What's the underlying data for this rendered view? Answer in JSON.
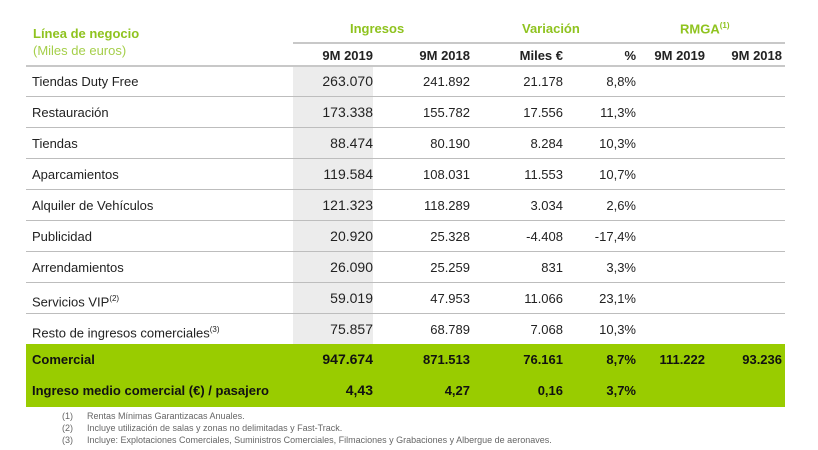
{
  "header": {
    "line_title": "Línea de negocio",
    "line_subtitle": "(Miles de euros)",
    "group_ingresos": "Ingresos",
    "group_variacion": "Variación",
    "group_rmga": "RMGA",
    "group_rmga_note": "(1)",
    "cols": [
      "9M 2019",
      "9M 2018",
      "Miles €",
      "%",
      "9M 2019",
      "9M 2018"
    ]
  },
  "rows": [
    {
      "label": "Tiendas Duty Free",
      "note": "",
      "v": [
        "263.070",
        "241.892",
        "21.178",
        "8,8%",
        "",
        ""
      ]
    },
    {
      "label": "Restauración",
      "note": "",
      "v": [
        "173.338",
        "155.782",
        "17.556",
        "11,3%",
        "",
        ""
      ]
    },
    {
      "label": "Tiendas",
      "note": "",
      "v": [
        "88.474",
        "80.190",
        "8.284",
        "10,3%",
        "",
        ""
      ]
    },
    {
      "label": "Aparcamientos",
      "note": "",
      "v": [
        "119.584",
        "108.031",
        "11.553",
        "10,7%",
        "",
        ""
      ]
    },
    {
      "label": "Alquiler de Vehículos",
      "note": "",
      "v": [
        "121.323",
        "118.289",
        "3.034",
        "2,6%",
        "",
        ""
      ]
    },
    {
      "label": "Publicidad",
      "note": "",
      "v": [
        "20.920",
        "25.328",
        "-4.408",
        "-17,4%",
        "",
        ""
      ]
    },
    {
      "label": "Arrendamientos",
      "note": "",
      "v": [
        "26.090",
        "25.259",
        "831",
        "3,3%",
        "",
        ""
      ]
    },
    {
      "label": "Servicios VIP",
      "note": "(2)",
      "v": [
        "59.019",
        "47.953",
        "11.066",
        "23,1%",
        "",
        ""
      ]
    },
    {
      "label": "Resto de ingresos comerciales",
      "note": "(3)",
      "v": [
        "75.857",
        "68.789",
        "7.068",
        "10,3%",
        "",
        ""
      ]
    }
  ],
  "totals": [
    {
      "label": "Comercial",
      "v": [
        "947.674",
        "871.513",
        "76.161",
        "8,7%",
        "111.222",
        "93.236"
      ]
    },
    {
      "label": "Ingreso medio comercial (€) / pasajero",
      "v": [
        "4,43",
        "4,27",
        "0,16",
        "3,7%",
        "",
        ""
      ]
    }
  ],
  "footnotes": [
    {
      "n": "(1)",
      "text": "Rentas Mínimas Garantizacas Anuales."
    },
    {
      "n": "(2)",
      "text": "Incluye utilización de salas y zonas no delimitadas y Fast-Track."
    },
    {
      "n": "(3)",
      "text": "Incluye:  Explotaciones Comerciales, Suministros Comerciales, Filmaciones y Grabaciones  y Albergue de aeronaves."
    }
  ],
  "colors": {
    "accent": "#99cc00",
    "highlight_column": "#ececec"
  }
}
